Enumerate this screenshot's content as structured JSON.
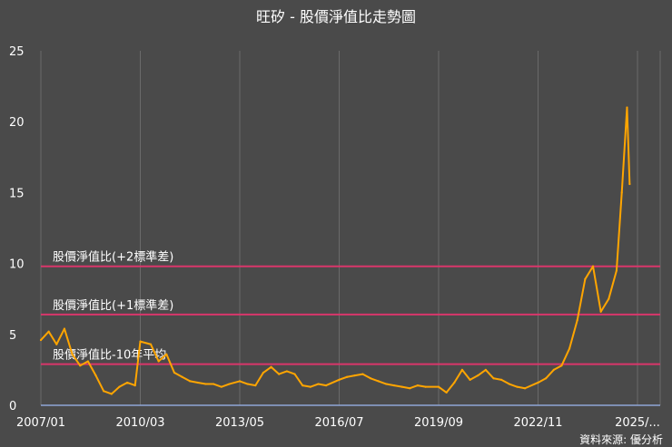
{
  "chart_data": {
    "type": "line",
    "title": "旺矽 - 股價淨值比走勢圖",
    "source_text": "資料來源: 優分析",
    "xlabel": "",
    "ylabel": "",
    "ylim": [
      0,
      25
    ],
    "y_ticks": [
      "0",
      "5",
      "10",
      "15",
      "20",
      "25"
    ],
    "x_ticks": [
      "2007/01",
      "2010/03",
      "2013/05",
      "2016/07",
      "2019/09",
      "2022/11",
      "2025/..."
    ],
    "grid": "vertical",
    "colors": {
      "background": "#4a4a4a",
      "line": "#ffa500",
      "bands": "#d9366b",
      "grid": "#6a6a6a"
    },
    "reference_lines": [
      {
        "label": "股價淨值比(+2標準差)",
        "value": 9.8
      },
      {
        "label": "股價淨值比(+1標準差)",
        "value": 6.4
      },
      {
        "label": "股價淨值比-10年平均",
        "value": 2.9
      }
    ],
    "series": [
      {
        "x": [
          "2007/01",
          "2007/04",
          "2007/07",
          "2007/10",
          "2008/01",
          "2008/04",
          "2008/07",
          "2008/10",
          "2009/01",
          "2009/04",
          "2009/07",
          "2009/10",
          "2010/01",
          "2010/03",
          "2010/07",
          "2010/10",
          "2011/01",
          "2011/04",
          "2011/07",
          "2011/10",
          "2012/01",
          "2012/04",
          "2012/07",
          "2012/10",
          "2013/01",
          "2013/05",
          "2013/08",
          "2013/11",
          "2014/02",
          "2014/05",
          "2014/08",
          "2014/11",
          "2015/02",
          "2015/05",
          "2015/08",
          "2015/11",
          "2016/02",
          "2016/07",
          "2016/10",
          "2017/01",
          "2017/04",
          "2017/07",
          "2017/10",
          "2018/01",
          "2018/04",
          "2018/07",
          "2018/10",
          "2019/01",
          "2019/04",
          "2019/09",
          "2019/12",
          "2020/03",
          "2020/06",
          "2020/09",
          "2020/12",
          "2021/03",
          "2021/06",
          "2021/09",
          "2021/12",
          "2022/03",
          "2022/06",
          "2022/11",
          "2023/02",
          "2023/05",
          "2023/08",
          "2023/11",
          "2024/02",
          "2024/05",
          "2024/08",
          "2024/11",
          "2025/02",
          "2025/05",
          "2025/07",
          "2025/09",
          "2025/10"
        ],
        "values": [
          4.6,
          5.2,
          4.3,
          5.4,
          3.6,
          2.8,
          3.1,
          2.1,
          1.0,
          0.8,
          1.3,
          1.6,
          1.4,
          4.5,
          4.3,
          3.1,
          3.6,
          2.3,
          2.0,
          1.7,
          1.6,
          1.5,
          1.5,
          1.3,
          1.5,
          1.7,
          1.5,
          1.4,
          2.3,
          2.7,
          2.2,
          2.4,
          2.2,
          1.4,
          1.3,
          1.5,
          1.4,
          1.8,
          2.0,
          2.1,
          2.2,
          1.9,
          1.7,
          1.5,
          1.4,
          1.3,
          1.2,
          1.4,
          1.3,
          1.3,
          0.9,
          1.6,
          2.5,
          1.8,
          2.1,
          2.5,
          1.9,
          1.8,
          1.5,
          1.3,
          1.2,
          1.6,
          1.9,
          2.5,
          2.8,
          4.0,
          6.0,
          8.9,
          9.8,
          6.6,
          7.5,
          9.5,
          15.0,
          21.0,
          15.6
        ]
      }
    ]
  }
}
